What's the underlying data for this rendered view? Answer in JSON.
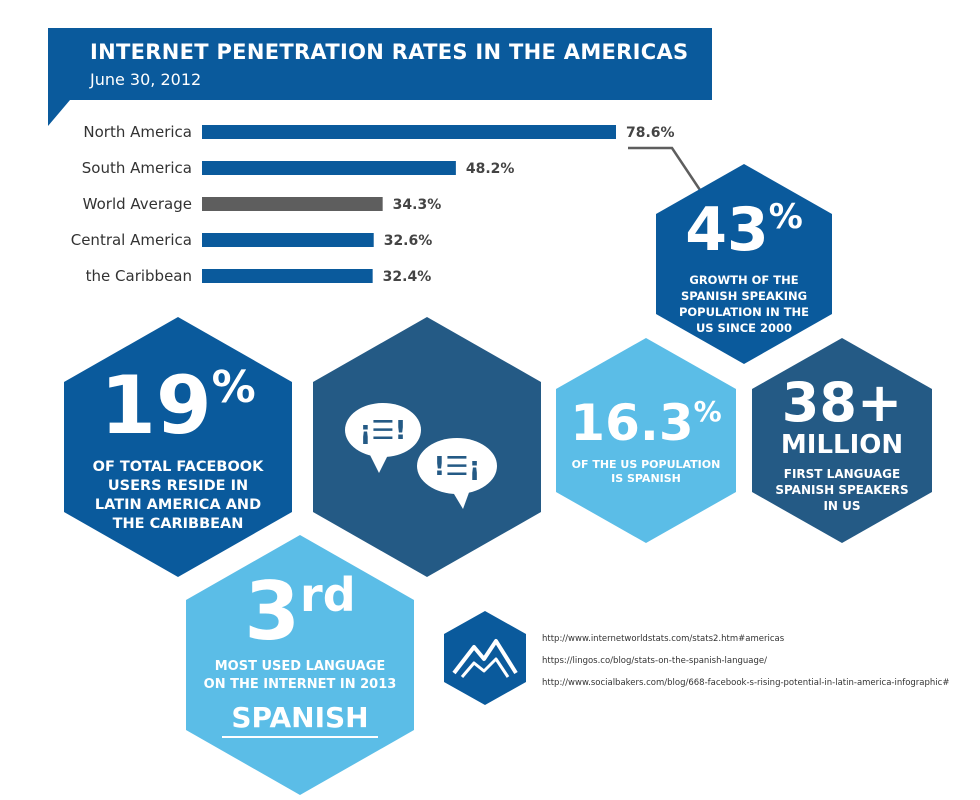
{
  "header": {
    "title": "INTERNET PENETRATION RATES IN THE AMERICAS",
    "subtitle": "June 30, 2012"
  },
  "chart_data": {
    "type": "bar",
    "orientation": "horizontal",
    "categories": [
      "North America",
      "South America",
      "World Average",
      "Central America",
      "the Caribbean"
    ],
    "values": [
      78.6,
      48.2,
      34.3,
      32.6,
      32.4
    ],
    "value_labels": [
      "78.6%",
      "48.2%",
      "34.3%",
      "32.6%",
      "32.4%"
    ],
    "unit": "%",
    "colors": [
      "#0a5a9c",
      "#0a5a9c",
      "#5e5e5e",
      "#0a5a9c",
      "#0a5a9c"
    ],
    "xlim": [
      0,
      100
    ],
    "grid": false,
    "legend": "none"
  },
  "stats": {
    "growth": {
      "value": "43",
      "suffix": "%",
      "caption": [
        "GROWTH OF THE",
        "SPANISH SPEAKING",
        "POPULATION IN THE",
        "US SINCE 2000"
      ]
    },
    "facebook": {
      "value": "19",
      "suffix": "%",
      "caption": [
        "OF TOTAL FACEBOOK",
        "USERS RESIDE IN",
        "LATIN AMERICA AND",
        "THE CARIBBEAN"
      ]
    },
    "us_population": {
      "value": "16.3",
      "suffix": "%",
      "caption": [
        "OF THE US POPULATION",
        "IS SPANISH"
      ]
    },
    "speakers": {
      "value": "38+",
      "sub": "MILLION",
      "caption": [
        "FIRST LANGUAGE",
        "SPANISH SPEAKERS",
        "IN US"
      ]
    },
    "language": {
      "value": "3",
      "suffix": "rd",
      "caption": [
        "MOST USED LANGUAGE",
        "ON THE INTERNET IN 2013"
      ],
      "highlight": "SPANISH"
    }
  },
  "speech_bubbles": [
    "¡☰!",
    "!☰¡"
  ],
  "sources": [
    "http://www.internetworldstats.com/stats2.htm#americas",
    "https://lingos.co/blog/stats-on-the-spanish-language/",
    "http://www.socialbakers.com/blog/668-facebook-s-rising-potential-in-latin-america-infographic#"
  ],
  "colors": {
    "dark_blue": "#0a5a9c",
    "navy": "#245a85",
    "light_blue": "#5bbde7",
    "gray": "#5e5e5e",
    "text": "#333333"
  },
  "icons": {
    "logo": "mountain-logo-icon"
  }
}
